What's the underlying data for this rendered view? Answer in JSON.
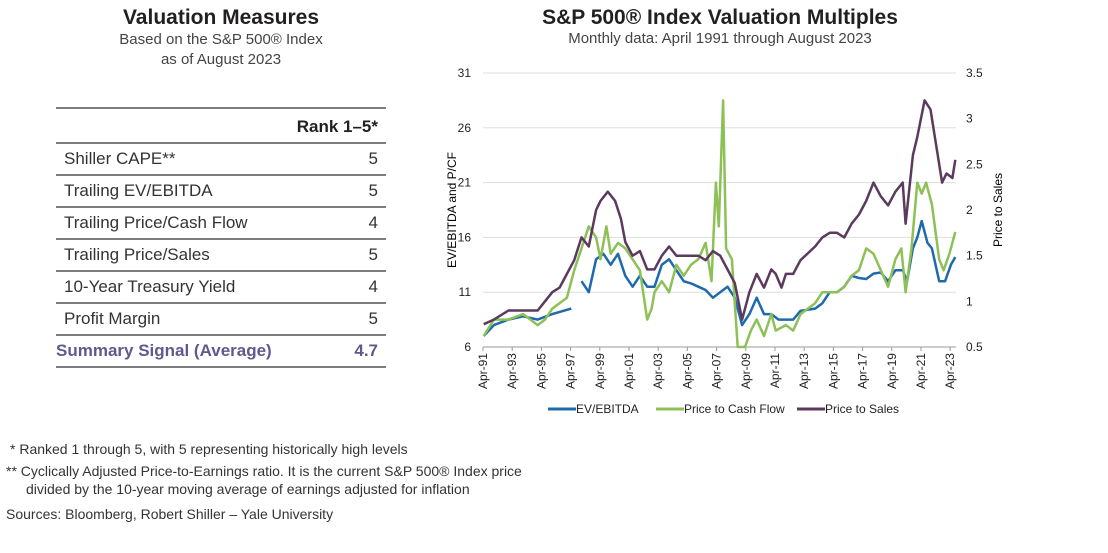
{
  "left": {
    "title": "Valuation Measures",
    "subtitle_lines": [
      "Based on the S&P 500® Index",
      "as of August 2023"
    ],
    "header": "Rank 1–5*",
    "rows": [
      {
        "label": "Shiller CAPE**",
        "value": "5"
      },
      {
        "label": "Trailing EV/EBITDA",
        "value": "5"
      },
      {
        "label": "Trailing Price/Cash Flow",
        "value": "4"
      },
      {
        "label": "Trailing Price/Sales",
        "value": "5"
      },
      {
        "label": "10-Year Treasury Yield",
        "value": "4"
      },
      {
        "label": "Profit Margin",
        "value": "5"
      }
    ],
    "summary": {
      "label": "Summary Signal (Average)",
      "value": "4.7"
    }
  },
  "footnotes": [
    "*  Ranked 1 through 5, with 5 representing historically high levels",
    "** Cyclically Adjusted Price-to-Earnings ratio. It is the current S&P 500® Index price",
    "divided by the 10-year moving average of earnings adjusted for inflation",
    "Sources: Bloomberg, Robert Shiller – Yale University"
  ],
  "chart_data": {
    "type": "line",
    "title": "S&P 500® Index Valuation Multiples",
    "subtitle": "Monthly data: April 1991 through August 2023",
    "ylabel": "EV/EBITDA and P/CF",
    "y2label": "Price to Sales",
    "ylim": [
      6,
      31
    ],
    "yticks": [
      6,
      11,
      16,
      21,
      26,
      31
    ],
    "y2lim": [
      0.5,
      3.5
    ],
    "y2ticks": [
      "0.5",
      "1",
      "1.5",
      "2",
      "2.5",
      "3",
      "3.5"
    ],
    "xlim": [
      1991.25,
      2023.6
    ],
    "xticks": [
      "Apr-91",
      "Apr-93",
      "Apr-95",
      "Apr-97",
      "Apr-99",
      "Apr-01",
      "Apr-03",
      "Apr-05",
      "Apr-07",
      "Apr-09",
      "Apr-11",
      "Apr-13",
      "Apr-15",
      "Apr-17",
      "Apr-19",
      "Apr-21",
      "Apr-23"
    ],
    "grid": true,
    "legend": "bottom",
    "series": [
      {
        "name": "EV/EBITDA",
        "axis": "left",
        "color": "#1f6aad",
        "points": [
          [
            1991.3,
            7
          ],
          [
            1992,
            8
          ],
          [
            1993,
            8.5
          ],
          [
            1994,
            8.8
          ],
          [
            1995,
            8.5
          ],
          [
            1996,
            9
          ],
          [
            1997.3,
            9.5
          ],
          [
            1997.4,
            null
          ],
          [
            1998,
            12
          ],
          [
            1998.5,
            11
          ],
          [
            1999,
            14
          ],
          [
            1999.5,
            14.5
          ],
          [
            2000,
            13.5
          ],
          [
            2000.5,
            14.5
          ],
          [
            2001,
            12.5
          ],
          [
            2001.5,
            11.5
          ],
          [
            2002,
            12.5
          ],
          [
            2002.5,
            11.5
          ],
          [
            2003,
            11.5
          ],
          [
            2003.5,
            13.5
          ],
          [
            2004,
            14
          ],
          [
            2004.5,
            13
          ],
          [
            2005,
            12
          ],
          [
            2005.5,
            11.8
          ],
          [
            2006,
            11.5
          ],
          [
            2006.5,
            11.2
          ],
          [
            2007,
            10.5
          ],
          [
            2007.5,
            11
          ],
          [
            2008,
            11.5
          ],
          [
            2008.5,
            10.5
          ],
          [
            2009,
            8
          ],
          [
            2009.5,
            9
          ],
          [
            2010,
            10.5
          ],
          [
            2010.5,
            9
          ],
          [
            2011,
            9
          ],
          [
            2011.5,
            8.5
          ],
          [
            2012,
            8.5
          ],
          [
            2012.5,
            8.5
          ],
          [
            2013,
            9.3
          ],
          [
            2014,
            9.5
          ],
          [
            2014.5,
            10
          ],
          [
            2015,
            11
          ],
          [
            2015.5,
            11
          ],
          [
            2016,
            11.5
          ],
          [
            2016.5,
            12.5
          ],
          [
            2017,
            12.3
          ],
          [
            2017.5,
            12.2
          ],
          [
            2018,
            12.7
          ],
          [
            2018.5,
            12.8
          ],
          [
            2019,
            12
          ],
          [
            2019.5,
            13
          ],
          [
            2020,
            13
          ],
          [
            2020.3,
            12
          ],
          [
            2020.7,
            15
          ],
          [
            2021,
            16
          ],
          [
            2021.3,
            17.5
          ],
          [
            2021.7,
            15.5
          ],
          [
            2022,
            15
          ],
          [
            2022.5,
            12
          ],
          [
            2022.9,
            12
          ],
          [
            2023.3,
            13.5
          ],
          [
            2023.6,
            14.2
          ]
        ]
      },
      {
        "name": "Price to Cash Flow",
        "axis": "left",
        "color": "#8dc057",
        "points": [
          [
            1991.3,
            7
          ],
          [
            1992,
            8.5
          ],
          [
            1993,
            8.5
          ],
          [
            1994,
            9
          ],
          [
            1995,
            8
          ],
          [
            1995.5,
            8.5
          ],
          [
            1996,
            9.5
          ],
          [
            1997,
            10.5
          ],
          [
            1997.5,
            13
          ],
          [
            1998,
            15
          ],
          [
            1998.5,
            17
          ],
          [
            1999,
            16
          ],
          [
            1999.3,
            14
          ],
          [
            1999.7,
            17
          ],
          [
            2000,
            14.5
          ],
          [
            2000.5,
            15.5
          ],
          [
            2001,
            15
          ],
          [
            2001.5,
            14
          ],
          [
            2002,
            13
          ],
          [
            2002.5,
            8.5
          ],
          [
            2002.8,
            9.5
          ],
          [
            2003,
            11
          ],
          [
            2003.5,
            12
          ],
          [
            2004,
            11
          ],
          [
            2004.5,
            13.5
          ],
          [
            2005,
            12.5
          ],
          [
            2005.5,
            13.5
          ],
          [
            2006,
            14
          ],
          [
            2006.5,
            15.5
          ],
          [
            2006.9,
            12
          ],
          [
            2007.2,
            21
          ],
          [
            2007.4,
            17
          ],
          [
            2007.7,
            28.5
          ],
          [
            2007.9,
            15
          ],
          [
            2008.3,
            14
          ],
          [
            2008.7,
            6
          ],
          [
            2009.2,
            6
          ],
          [
            2009.6,
            7.5
          ],
          [
            2010,
            8.5
          ],
          [
            2010.5,
            7
          ],
          [
            2011,
            9
          ],
          [
            2011.3,
            7.5
          ],
          [
            2012,
            8
          ],
          [
            2012.5,
            7.5
          ],
          [
            2013,
            9
          ],
          [
            2014,
            10
          ],
          [
            2014.5,
            11
          ],
          [
            2015,
            11
          ],
          [
            2015.5,
            11
          ],
          [
            2016,
            11.5
          ],
          [
            2016.5,
            12.5
          ],
          [
            2017,
            13
          ],
          [
            2017.5,
            15
          ],
          [
            2018,
            14.5
          ],
          [
            2018.5,
            13
          ],
          [
            2019,
            11.5
          ],
          [
            2019.5,
            14
          ],
          [
            2019.9,
            15
          ],
          [
            2020.2,
            11
          ],
          [
            2020.6,
            15
          ],
          [
            2021,
            21
          ],
          [
            2021.3,
            20
          ],
          [
            2021.6,
            21
          ],
          [
            2022,
            19
          ],
          [
            2022.5,
            14
          ],
          [
            2022.8,
            13
          ],
          [
            2023.2,
            14.5
          ],
          [
            2023.6,
            16.5
          ]
        ]
      },
      {
        "name": "Price to Sales",
        "axis": "right",
        "color": "#5b3a5e",
        "points": [
          [
            1991.3,
            0.75
          ],
          [
            1992,
            0.8
          ],
          [
            1993,
            0.9
          ],
          [
            1994,
            0.9
          ],
          [
            1995,
            0.9
          ],
          [
            1995.5,
            1
          ],
          [
            1996,
            1.1
          ],
          [
            1996.5,
            1.15
          ],
          [
            1997,
            1.3
          ],
          [
            1997.5,
            1.45
          ],
          [
            1998,
            1.7
          ],
          [
            1998.5,
            1.6
          ],
          [
            1999,
            2
          ],
          [
            1999.3,
            2.1
          ],
          [
            1999.8,
            2.2
          ],
          [
            2000.3,
            2.1
          ],
          [
            2000.7,
            1.9
          ],
          [
            2001,
            1.65
          ],
          [
            2001.5,
            1.5
          ],
          [
            2002,
            1.55
          ],
          [
            2002.5,
            1.35
          ],
          [
            2003,
            1.35
          ],
          [
            2003.5,
            1.5
          ],
          [
            2004,
            1.6
          ],
          [
            2004.5,
            1.5
          ],
          [
            2005,
            1.5
          ],
          [
            2006,
            1.5
          ],
          [
            2006.5,
            1.45
          ],
          [
            2007,
            1.55
          ],
          [
            2007.5,
            1.5
          ],
          [
            2008,
            1.35
          ],
          [
            2008.5,
            1.2
          ],
          [
            2009,
            0.8
          ],
          [
            2009.5,
            1.1
          ],
          [
            2010,
            1.3
          ],
          [
            2010.5,
            1.15
          ],
          [
            2011,
            1.35
          ],
          [
            2011.3,
            1.3
          ],
          [
            2011.7,
            1.15
          ],
          [
            2012,
            1.3
          ],
          [
            2012.5,
            1.3
          ],
          [
            2013,
            1.45
          ],
          [
            2014,
            1.6
          ],
          [
            2014.5,
            1.7
          ],
          [
            2015,
            1.75
          ],
          [
            2015.5,
            1.75
          ],
          [
            2016,
            1.7
          ],
          [
            2016.5,
            1.85
          ],
          [
            2017,
            1.95
          ],
          [
            2017.5,
            2.1
          ],
          [
            2018,
            2.3
          ],
          [
            2018.5,
            2.15
          ],
          [
            2019,
            2.05
          ],
          [
            2019.5,
            2.2
          ],
          [
            2020,
            2.3
          ],
          [
            2020.2,
            1.85
          ],
          [
            2020.7,
            2.6
          ],
          [
            2021,
            2.8
          ],
          [
            2021.5,
            3.2
          ],
          [
            2021.9,
            3.1
          ],
          [
            2022.3,
            2.7
          ],
          [
            2022.7,
            2.3
          ],
          [
            2023,
            2.4
          ],
          [
            2023.4,
            2.35
          ],
          [
            2023.6,
            2.55
          ]
        ]
      }
    ]
  }
}
